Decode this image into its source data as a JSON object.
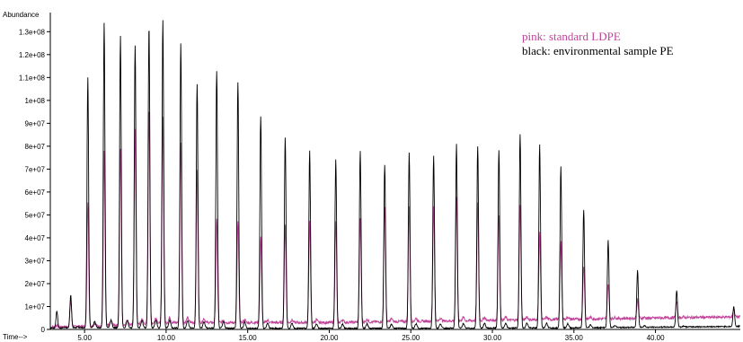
{
  "chart_data": {
    "type": "line",
    "ylabel": "Abundance",
    "xlabel": "Time-->",
    "xlim": [
      2.9,
      45.2
    ],
    "ylim": [
      0,
      136000000
    ],
    "x_ticks": [
      5,
      10,
      15,
      20,
      25,
      30,
      35,
      40
    ],
    "x_tick_labels": [
      "5.00",
      "10.00",
      "15.00",
      "20.00",
      "25.00",
      "30.00",
      "35.00",
      "40.00"
    ],
    "y_ticks": [
      0,
      10000000,
      20000000,
      30000000,
      40000000,
      50000000,
      60000000,
      70000000,
      80000000,
      90000000,
      100000000,
      110000000,
      120000000,
      130000000
    ],
    "y_tick_labels": [
      "0",
      "1e+07",
      "2e+07",
      "3e+07",
      "4e+07",
      "5e+07",
      "6e+07",
      "7e+07",
      "8e+07",
      "9e+07",
      "1e+08",
      "1.1e+08",
      "1.2e+08",
      "1.3e+08"
    ],
    "legend_position": "top-right",
    "grid": false,
    "series": [
      {
        "name": "pink: standard LDPE",
        "color": "#c0449a",
        "baseline": [
          [
            2.9,
            1000000
          ],
          [
            6,
            1500000
          ],
          [
            10,
            3000000
          ],
          [
            14,
            3000000
          ],
          [
            20,
            3000000
          ],
          [
            25,
            3500000
          ],
          [
            30,
            4000000
          ],
          [
            35,
            4500000
          ],
          [
            40,
            5000000
          ],
          [
            45.2,
            5500000
          ]
        ],
        "peaks": [
          [
            3.3,
            2000000
          ],
          [
            4.15,
            13000000
          ],
          [
            5.2,
            56000000
          ],
          [
            6.2,
            78000000
          ],
          [
            7.2,
            79000000
          ],
          [
            8.1,
            88000000
          ],
          [
            8.95,
            97000000
          ],
          [
            9.8,
            93000000
          ],
          [
            10.9,
            82000000
          ],
          [
            11.9,
            70000000
          ],
          [
            13.1,
            48000000
          ],
          [
            14.4,
            47000000
          ],
          [
            15.8,
            40000000
          ],
          [
            17.3,
            46000000
          ],
          [
            18.8,
            47000000
          ],
          [
            20.4,
            47000000
          ],
          [
            21.9,
            48000000
          ],
          [
            23.4,
            54000000
          ],
          [
            24.9,
            54000000
          ],
          [
            26.4,
            54000000
          ],
          [
            27.8,
            58000000
          ],
          [
            29.1,
            55000000
          ],
          [
            30.4,
            50000000
          ],
          [
            31.7,
            54000000
          ],
          [
            32.9,
            42000000
          ],
          [
            34.2,
            38000000
          ],
          [
            35.6,
            28000000
          ],
          [
            37.1,
            20000000
          ],
          [
            38.9,
            13000000
          ],
          [
            41.3,
            12000000
          ],
          [
            44.8,
            9000000
          ]
        ]
      },
      {
        "name": "black: environmental sample PE",
        "color": "#000000",
        "baseline": [
          [
            2.9,
            600000
          ],
          [
            5,
            800000
          ],
          [
            10,
            700000
          ],
          [
            15,
            500000
          ],
          [
            20,
            500000
          ],
          [
            25,
            500000
          ],
          [
            30,
            600000
          ],
          [
            35,
            700000
          ],
          [
            40,
            1000000
          ],
          [
            45.2,
            1300000
          ]
        ],
        "peaks": [
          [
            3.3,
            8000000
          ],
          [
            4.15,
            15000000
          ],
          [
            5.2,
            110000000
          ],
          [
            6.2,
            134000000
          ],
          [
            7.2,
            128000000
          ],
          [
            8.1,
            124000000
          ],
          [
            8.95,
            133000000
          ],
          [
            9.8,
            135000000
          ],
          [
            10.9,
            125000000
          ],
          [
            11.9,
            107000000
          ],
          [
            13.1,
            113000000
          ],
          [
            14.4,
            108000000
          ],
          [
            15.8,
            93000000
          ],
          [
            17.3,
            84000000
          ],
          [
            18.8,
            78000000
          ],
          [
            20.4,
            74000000
          ],
          [
            21.9,
            78000000
          ],
          [
            23.4,
            72000000
          ],
          [
            24.9,
            77000000
          ],
          [
            26.4,
            76000000
          ],
          [
            27.8,
            81000000
          ],
          [
            29.1,
            80000000
          ],
          [
            30.4,
            78000000
          ],
          [
            31.7,
            85000000
          ],
          [
            32.9,
            81000000
          ],
          [
            34.2,
            71000000
          ],
          [
            35.6,
            52000000
          ],
          [
            37.1,
            39000000
          ],
          [
            38.9,
            26000000
          ],
          [
            41.3,
            17000000
          ],
          [
            44.8,
            10000000
          ]
        ]
      }
    ]
  }
}
